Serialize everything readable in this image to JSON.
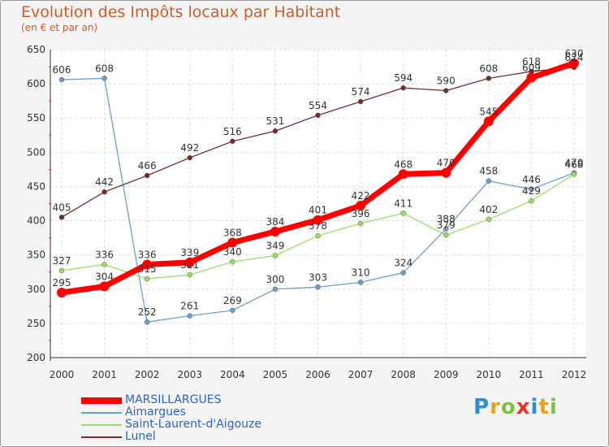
{
  "header": {
    "title": "Evolution des Impôts locaux par Habitant",
    "subtitle": "(en € et par an)"
  },
  "logo": {
    "text": "Proxiti",
    "colors": [
      "#2a8fd6",
      "#e8a21a",
      "#7cc242",
      "#e8332a",
      "#2a8fd6",
      "#e8a21a",
      "#7cc242"
    ]
  },
  "chart_data": {
    "type": "line",
    "title": "Evolution des Impôts locaux par Habitant",
    "subtitle": "(en € et par an)",
    "categories": [
      "2000",
      "2001",
      "2002",
      "2003",
      "2004",
      "2005",
      "2006",
      "2007",
      "2008",
      "2009",
      "2010",
      "2011",
      "2012"
    ],
    "ylim": [
      200,
      650
    ],
    "yticks": [
      "200",
      "250",
      "300",
      "350",
      "400",
      "450",
      "500",
      "550",
      "600",
      "650"
    ],
    "grid": true,
    "legend_position": "bottom-left",
    "series": [
      {
        "name": "MARSILLARGUES",
        "color": "#ff0000",
        "values": [
          295,
          304,
          336,
          339,
          368,
          384,
          401,
          422,
          468,
          470,
          545,
          609,
          630
        ],
        "labels": [
          "295",
          "304",
          "336",
          "339",
          "368",
          "384",
          "401",
          "422",
          "468",
          "470",
          "545",
          "609",
          "630"
        ]
      },
      {
        "name": "Aimargues",
        "color": "#6a9fd0",
        "values": [
          606,
          608,
          252,
          261,
          269,
          300,
          303,
          310,
          324,
          388,
          458,
          446,
          470
        ],
        "labels": [
          "606",
          "608",
          "252",
          "261",
          "269",
          "300",
          "303",
          "310",
          "324",
          "388",
          "458",
          "446",
          "470"
        ]
      },
      {
        "name": "Saint-Laurent-d'Aigouze",
        "color": "#99dd66",
        "values": [
          327,
          336,
          315,
          321,
          340,
          349,
          378,
          396,
          411,
          379,
          402,
          429,
          468
        ],
        "labels": [
          "327",
          "336",
          "315",
          "321",
          "340",
          "349",
          "378",
          "396",
          "411",
          "379",
          "402",
          "429",
          "468"
        ]
      },
      {
        "name": "Lunel",
        "color": "#7a2a2a",
        "values": [
          405,
          442,
          466,
          492,
          516,
          531,
          554,
          574,
          594,
          590,
          608,
          618,
          624
        ],
        "labels": [
          "405",
          "442",
          "466",
          "492",
          "516",
          "531",
          "554",
          "574",
          "594",
          "590",
          "608",
          "618",
          "624"
        ]
      }
    ]
  }
}
